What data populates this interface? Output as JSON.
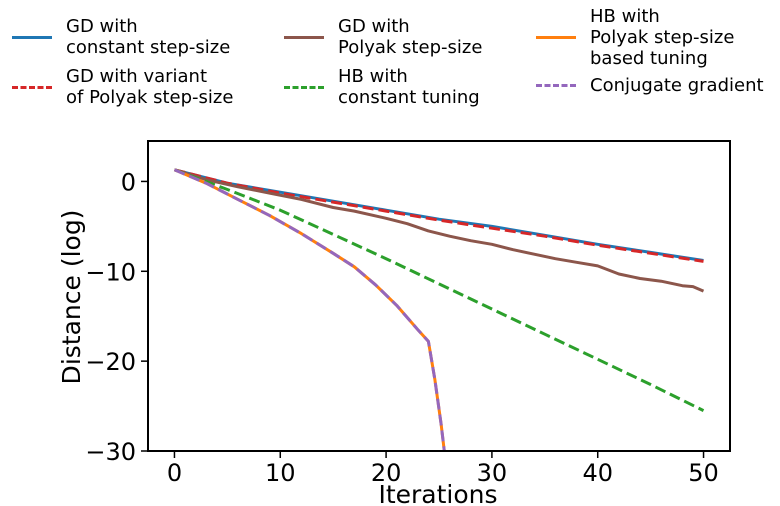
{
  "chart_data": {
    "type": "line",
    "xlabel": "Iterations",
    "ylabel": "Distance (log)",
    "xlim": [
      -2.5,
      52.5
    ],
    "ylim": [
      -30,
      4.5
    ],
    "xticks": [
      0,
      10,
      20,
      30,
      40,
      50
    ],
    "yticks": [
      0,
      -10,
      -20,
      -30
    ],
    "grid": false,
    "legend_placement": "top",
    "series": [
      {
        "name": "GD with\nconstant step-size",
        "color": "#1f77b4",
        "style": "solid",
        "x": [
          0,
          5,
          10,
          15,
          20,
          25,
          30,
          35,
          40,
          45,
          50
        ],
        "y": [
          1.3,
          -0.2,
          -1.2,
          -2.2,
          -3.2,
          -4.2,
          -5.0,
          -6.0,
          -7.0,
          -7.9,
          -8.8
        ]
      },
      {
        "name": "GD with variant\nof Polyak step-size",
        "color": "#d62728",
        "style": "dashed",
        "x": [
          0,
          5,
          10,
          15,
          20,
          25,
          30,
          35,
          40,
          45,
          50
        ],
        "y": [
          1.3,
          -0.2,
          -1.3,
          -2.3,
          -3.3,
          -4.3,
          -5.2,
          -6.1,
          -7.1,
          -8.0,
          -8.9
        ]
      },
      {
        "name": "GD with\nPolyak step-size",
        "color": "#8c564b",
        "style": "solid",
        "x": [
          0,
          3,
          6,
          9,
          12,
          15,
          17,
          20,
          22,
          24,
          26,
          28,
          30,
          32,
          34,
          36,
          38,
          40,
          42,
          44,
          46,
          48,
          49,
          50
        ],
        "y": [
          1.3,
          0.2,
          -0.6,
          -1.3,
          -2.0,
          -2.9,
          -3.3,
          -4.1,
          -4.7,
          -5.5,
          -6.1,
          -6.6,
          -7.0,
          -7.6,
          -8.1,
          -8.6,
          -9.0,
          -9.4,
          -10.3,
          -10.8,
          -11.1,
          -11.6,
          -11.7,
          -12.2
        ]
      },
      {
        "name": "HB with\nconstant tuning",
        "color": "#2ca02c",
        "style": "dashed",
        "x": [
          0,
          5,
          10,
          15,
          20,
          25,
          30,
          35,
          40,
          45,
          50
        ],
        "y": [
          1.3,
          -0.9,
          -3.2,
          -5.9,
          -8.6,
          -11.4,
          -14.2,
          -17.0,
          -19.8,
          -22.6,
          -25.5
        ]
      },
      {
        "name": "HB with\nPolyak step-size\nbased tuning",
        "color": "#ff7f0e",
        "style": "solid",
        "x": [
          0,
          3,
          6,
          9,
          12,
          15,
          17,
          19,
          21,
          23,
          24,
          24.6,
          25.2,
          25.5
        ],
        "y": [
          1.3,
          -0.2,
          -2.0,
          -3.8,
          -5.8,
          -8.0,
          -9.5,
          -11.5,
          -13.8,
          -16.5,
          -17.8,
          -22.0,
          -27.0,
          -30.0
        ]
      },
      {
        "name": "Conjugate gradient",
        "color": "#9467bd",
        "style": "dashed",
        "x": [
          0,
          3,
          6,
          9,
          12,
          15,
          17,
          19,
          21,
          23,
          24,
          24.6,
          25.2,
          25.5
        ],
        "y": [
          1.3,
          -0.2,
          -2.0,
          -3.8,
          -5.8,
          -8.0,
          -9.5,
          -11.5,
          -13.8,
          -16.5,
          -17.8,
          -22.0,
          -27.0,
          -30.0
        ]
      }
    ]
  }
}
